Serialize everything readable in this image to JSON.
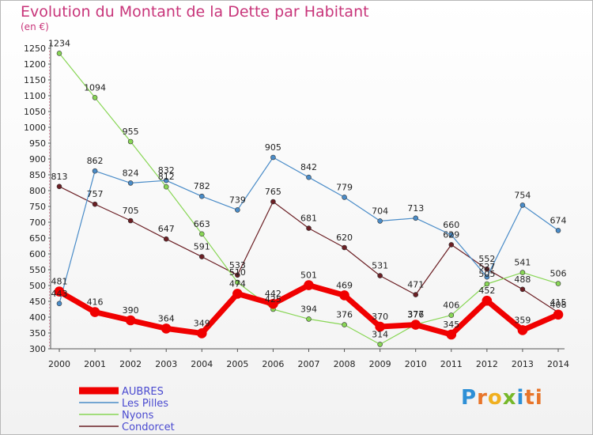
{
  "chart_data": {
    "type": "line",
    "title": "Evolution du Montant de la Dette par Habitant",
    "subtitle": "(en €)",
    "xlabel": "",
    "ylabel": "",
    "x": [
      "2000",
      "2001",
      "2002",
      "2003",
      "2004",
      "2005",
      "2006",
      "2007",
      "2008",
      "2009",
      "2010",
      "2011",
      "2012",
      "2013",
      "2014"
    ],
    "ylim": [
      300,
      1250
    ],
    "yticks": [
      300,
      350,
      400,
      450,
      500,
      550,
      600,
      650,
      700,
      750,
      800,
      850,
      900,
      950,
      1000,
      1050,
      1100,
      1150,
      1200,
      1250
    ],
    "legend_position": "bottom-left",
    "series": [
      {
        "name": "Condorcet",
        "color": "#6b1f24",
        "width": 1.2,
        "values": [
          813,
          757,
          705,
          647,
          591,
          533,
          765,
          681,
          620,
          531,
          471,
          629,
          552,
          488,
          415
        ]
      },
      {
        "name": "Nyons",
        "color": "#88d655",
        "width": 1.2,
        "values": [
          1234,
          1094,
          955,
          812,
          663,
          510,
          425,
          394,
          376,
          314,
          377,
          406,
          505,
          541,
          506
        ]
      },
      {
        "name": "Les Pilles",
        "color": "#4a8cc8",
        "width": 1.2,
        "values": [
          443,
          862,
          824,
          832,
          782,
          739,
          905,
          842,
          779,
          704,
          713,
          660,
          527,
          754,
          674
        ]
      },
      {
        "name": "AUBRES",
        "color": "#f00000",
        "width": 7,
        "values": [
          481,
          416,
          390,
          364,
          349,
          474,
          442,
          501,
          469,
          370,
          376,
          345,
          452,
          359,
          408
        ]
      }
    ],
    "legend_order": [
      "AUBRES",
      "Les Pilles",
      "Nyons",
      "Condorcet"
    ]
  },
  "logo": {
    "letters": [
      "P",
      "r",
      "o",
      "x",
      "i",
      "ti"
    ]
  }
}
